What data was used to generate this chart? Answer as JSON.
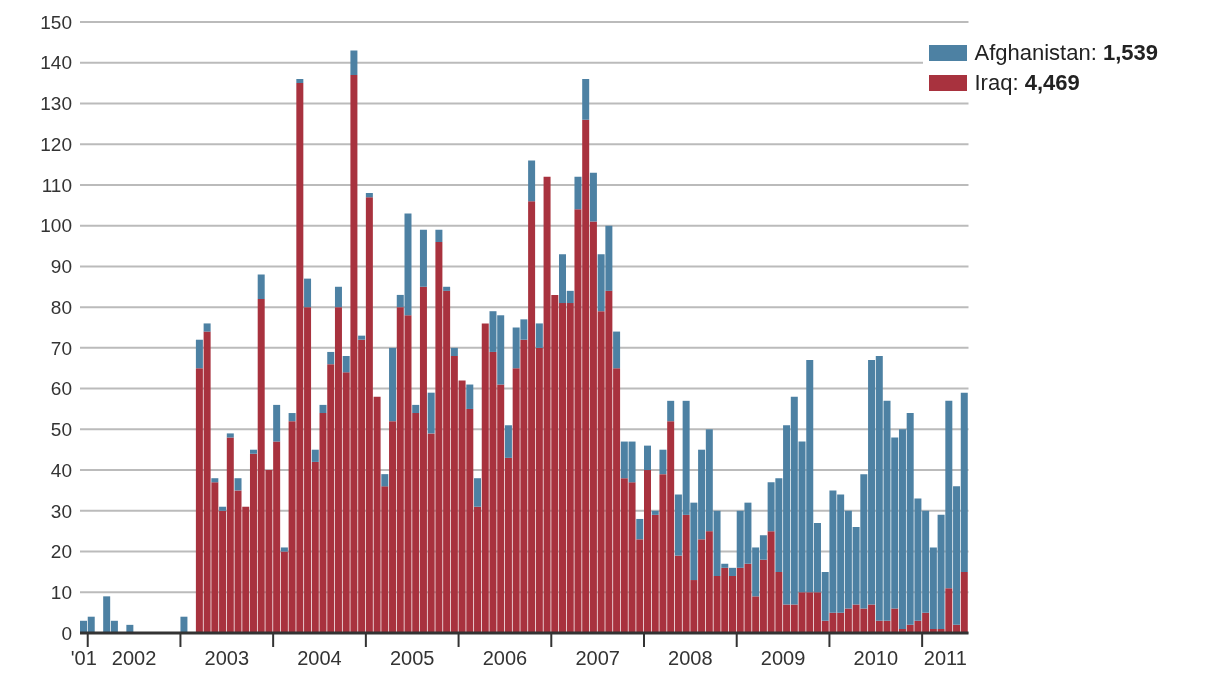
{
  "chart_data": {
    "type": "bar",
    "stacked": true,
    "x": [
      "2001-12",
      "2002-01",
      "2002-02",
      "2002-03",
      "2002-04",
      "2002-05",
      "2002-06",
      "2002-07",
      "2002-08",
      "2002-09",
      "2002-10",
      "2002-11",
      "2002-12",
      "2003-01",
      "2003-02",
      "2003-03",
      "2003-04",
      "2003-05",
      "2003-06",
      "2003-07",
      "2003-08",
      "2003-09",
      "2003-10",
      "2003-11",
      "2003-12",
      "2004-01",
      "2004-02",
      "2004-03",
      "2004-04",
      "2004-05",
      "2004-06",
      "2004-07",
      "2004-08",
      "2004-09",
      "2004-10",
      "2004-11",
      "2004-12",
      "2005-01",
      "2005-02",
      "2005-03",
      "2005-04",
      "2005-05",
      "2005-06",
      "2005-07",
      "2005-08",
      "2005-09",
      "2005-10",
      "2005-11",
      "2005-12",
      "2006-01",
      "2006-02",
      "2006-03",
      "2006-04",
      "2006-05",
      "2006-06",
      "2006-07",
      "2006-08",
      "2006-09",
      "2006-10",
      "2006-11",
      "2006-12",
      "2007-01",
      "2007-02",
      "2007-03",
      "2007-04",
      "2007-05",
      "2007-06",
      "2007-07",
      "2007-08",
      "2007-09",
      "2007-10",
      "2007-11",
      "2007-12",
      "2008-01",
      "2008-02",
      "2008-03",
      "2008-04",
      "2008-05",
      "2008-06",
      "2008-07",
      "2008-08",
      "2008-09",
      "2008-10",
      "2008-11",
      "2008-12",
      "2009-01",
      "2009-02",
      "2009-03",
      "2009-04",
      "2009-05",
      "2009-06",
      "2009-07",
      "2009-08",
      "2009-09",
      "2009-10",
      "2009-11",
      "2009-12",
      "2010-01",
      "2010-02",
      "2010-03",
      "2010-04",
      "2010-05",
      "2010-06",
      "2010-07",
      "2010-08",
      "2010-09",
      "2010-10",
      "2010-11",
      "2010-12",
      "2011-01",
      "2011-02",
      "2011-03",
      "2011-04",
      "2011-05",
      "2011-06"
    ],
    "series": [
      {
        "name": "Iraq: 4,469",
        "color": "#a8323e",
        "values": [
          0,
          0,
          0,
          0,
          0,
          0,
          0,
          0,
          0,
          0,
          0,
          0,
          0,
          0,
          0,
          65,
          74,
          37,
          30,
          48,
          35,
          31,
          44,
          82,
          40,
          47,
          20,
          52,
          135,
          80,
          42,
          54,
          66,
          80,
          64,
          137,
          72,
          107,
          58,
          36,
          52,
          80,
          78,
          54,
          85,
          49,
          96,
          84,
          68,
          62,
          55,
          31,
          76,
          69,
          61,
          43,
          65,
          72,
          106,
          70,
          112,
          83,
          81,
          81,
          104,
          126,
          101,
          79,
          84,
          65,
          38,
          37,
          23,
          40,
          29,
          39,
          52,
          19,
          29,
          13,
          23,
          25,
          14,
          16,
          14,
          16,
          17,
          9,
          18,
          25,
          15,
          7,
          7,
          10,
          10,
          10,
          3,
          5,
          5,
          6,
          7,
          6,
          7,
          3,
          3,
          6,
          1,
          2,
          3,
          5,
          1,
          1,
          11,
          2,
          15
        ]
      },
      {
        "name": "Afghanistan: 1,539",
        "color": "#4d81a3",
        "values": [
          3,
          4,
          0,
          9,
          3,
          0,
          2,
          0,
          0,
          0,
          0,
          0,
          0,
          4,
          0,
          7,
          2,
          1,
          1,
          1,
          3,
          0,
          1,
          6,
          0,
          9,
          1,
          2,
          1,
          7,
          3,
          2,
          3,
          5,
          4,
          6,
          1,
          1,
          0,
          3,
          18,
          3,
          25,
          2,
          14,
          10,
          3,
          1,
          2,
          0,
          6,
          7,
          0,
          10,
          17,
          8,
          10,
          5,
          10,
          6,
          0,
          0,
          12,
          3,
          8,
          10,
          12,
          14,
          16,
          9,
          9,
          10,
          5,
          6,
          1,
          6,
          5,
          15,
          28,
          19,
          22,
          25,
          16,
          1,
          2,
          14,
          15,
          12,
          6,
          12,
          23,
          44,
          51,
          37,
          57,
          17,
          12,
          30,
          29,
          24,
          19,
          33,
          60,
          65,
          54,
          42,
          49,
          52,
          30,
          25,
          20,
          28,
          46,
          34,
          44
        ]
      }
    ],
    "xlim": [
      "2001-12",
      "2011-07"
    ],
    "xticks": [
      {
        "value": "2001-12-16",
        "label": "'01"
      },
      {
        "value": "2002-01",
        "label": null
      },
      {
        "value": "2002-07",
        "label": "2002"
      },
      {
        "value": "2003-01",
        "label": null
      },
      {
        "value": "2003-07",
        "label": "2003"
      },
      {
        "value": "2004-01",
        "label": null
      },
      {
        "value": "2004-07",
        "label": "2004"
      },
      {
        "value": "2005-01",
        "label": null
      },
      {
        "value": "2005-07",
        "label": "2005"
      },
      {
        "value": "2006-01",
        "label": null
      },
      {
        "value": "2006-07",
        "label": "2006"
      },
      {
        "value": "2007-01",
        "label": null
      },
      {
        "value": "2007-07",
        "label": "2007"
      },
      {
        "value": "2008-01",
        "label": null
      },
      {
        "value": "2008-07",
        "label": "2008"
      },
      {
        "value": "2009-01",
        "label": null
      },
      {
        "value": "2009-07",
        "label": "2009"
      },
      {
        "value": "2010-01",
        "label": null
      },
      {
        "value": "2010-07",
        "label": "2010"
      },
      {
        "value": "2011-01",
        "label": null
      },
      {
        "value": "2011-04",
        "label": "2011"
      }
    ],
    "ylim": [
      0,
      150
    ],
    "yticks": [
      0,
      10,
      20,
      30,
      40,
      50,
      60,
      70,
      80,
      90,
      100,
      110,
      120,
      130,
      140,
      150
    ],
    "grid": "y",
    "legend": "top right"
  }
}
